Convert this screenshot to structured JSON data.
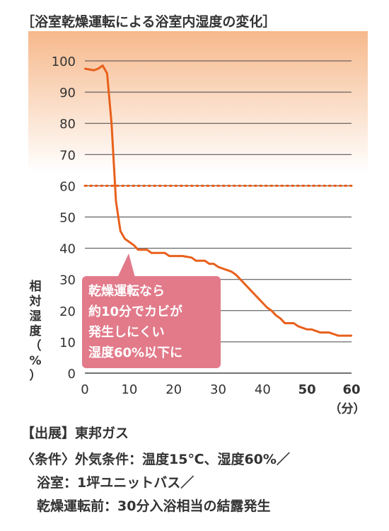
{
  "title": "［浴室乾燥運転による浴室内湿度の変化］",
  "colors": {
    "line": "#e8601c",
    "threshold": "#e8601c",
    "callout": "#e27a8a",
    "band_top": "#f6b98c",
    "band_bottom": "#ffffff",
    "grid": "#444444"
  },
  "chart_data": {
    "type": "line",
    "title": "",
    "xlabel": "（分）",
    "ylabel": "相対湿度（%）",
    "xlim": [
      0,
      60
    ],
    "ylim": [
      0,
      100
    ],
    "x_ticks": [
      "0",
      "10",
      "20",
      "30",
      "40",
      "50",
      "60"
    ],
    "y_ticks": [
      "0",
      "10",
      "20",
      "30",
      "40",
      "50",
      "60",
      "70",
      "80",
      "90",
      "100"
    ],
    "grid": true,
    "threshold": {
      "y": 60,
      "style": "dotted"
    },
    "x": [
      0,
      2,
      3,
      4,
      5,
      6,
      7,
      8,
      9,
      10,
      11,
      12,
      13,
      14,
      15,
      16,
      17,
      18,
      19,
      20,
      22,
      24,
      25,
      26,
      27,
      28,
      29,
      30,
      31,
      32,
      33,
      34,
      35,
      36,
      37,
      38,
      39,
      40,
      41,
      42,
      43,
      44,
      45,
      46,
      47,
      48,
      49,
      50,
      51,
      52,
      53,
      54,
      55,
      56,
      57,
      58,
      59,
      60
    ],
    "y": [
      97.5,
      97,
      97.5,
      98.5,
      96,
      80,
      55,
      45.5,
      43,
      42,
      41,
      39.5,
      39.5,
      39.5,
      38.5,
      38.5,
      38.5,
      38.5,
      37.5,
      37.5,
      37.5,
      37,
      36,
      36,
      36,
      35,
      35,
      34,
      33.5,
      33,
      32.5,
      31.5,
      30,
      28.5,
      27,
      25.5,
      24,
      22.5,
      21,
      20,
      18.5,
      17.5,
      16,
      16,
      16,
      15,
      14.5,
      14,
      14,
      13.5,
      13,
      13,
      13,
      12.5,
      12,
      12,
      12,
      12
    ]
  },
  "callout": {
    "lines": [
      "乾燥運転なら",
      "約10分でカビが",
      "発生しにくい",
      "湿度60%以下に"
    ]
  },
  "notes": {
    "source": "【出展】東邦ガス",
    "conditions_1": "〈条件〉外気条件：温度15℃、湿度60%／",
    "conditions_2": "浴室：1坪ユニットバス／",
    "conditions_3": "乾燥運転前：30分入浴相当の結露発生"
  }
}
